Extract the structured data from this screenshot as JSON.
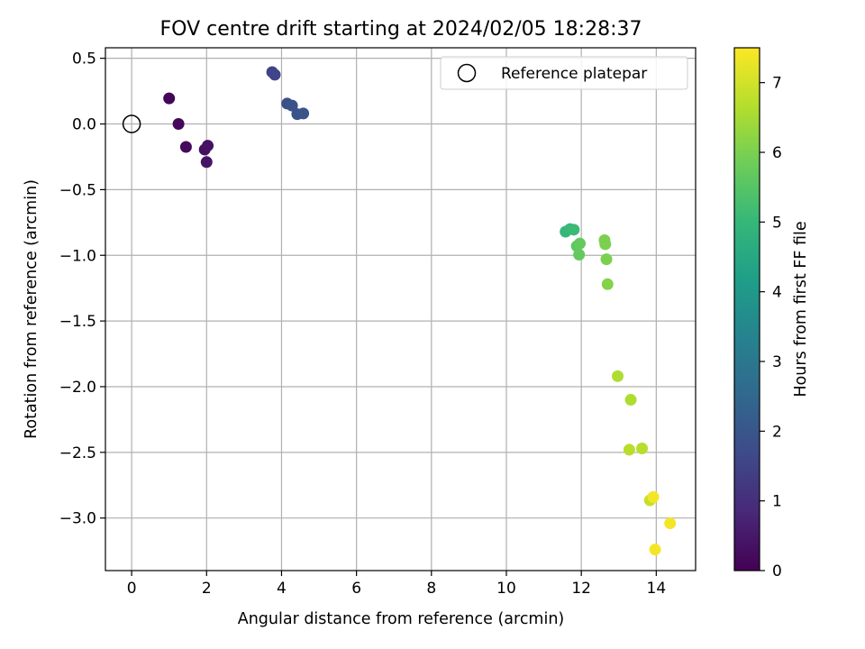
{
  "chart_data": {
    "type": "scatter",
    "title": "FOV centre drift starting at 2024/02/05 18:28:37",
    "xlabel": "Angular distance from reference (arcmin)",
    "ylabel": "Rotation from reference (arcmin)",
    "xlim": [
      -0.7,
      15.05
    ],
    "ylim": [
      -3.4,
      0.58
    ],
    "xticks": [
      0,
      2,
      4,
      6,
      8,
      10,
      12,
      14
    ],
    "xtick_labels": [
      "0",
      "2",
      "4",
      "6",
      "8",
      "10",
      "12",
      "14"
    ],
    "yticks": [
      0.5,
      0.0,
      -0.5,
      -1.0,
      -1.5,
      -2.0,
      -2.5,
      -3.0
    ],
    "ytick_labels": [
      "0.5",
      "0.0",
      "−0.5",
      "−1.0",
      "−1.5",
      "−2.0",
      "−2.5",
      "−3.0"
    ],
    "grid": true,
    "legend": {
      "placement": "upper-right",
      "entries": [
        "Reference platepar"
      ]
    },
    "reference_point": {
      "x": 0.0,
      "y": 0.0,
      "label": "Reference platepar"
    },
    "colorbar": {
      "label": "Hours from first FF file",
      "colormap": "viridis",
      "range": [
        0,
        7.5
      ],
      "ticks": [
        0,
        1,
        2,
        3,
        4,
        5,
        6,
        7
      ],
      "tick_labels": [
        "0",
        "1",
        "2",
        "3",
        "4",
        "5",
        "6",
        "7"
      ]
    },
    "points": [
      {
        "x": 1.0,
        "y": 0.195,
        "c": 0.1
      },
      {
        "x": 1.25,
        "y": 0.0,
        "c": 0.15
      },
      {
        "x": 1.45,
        "y": -0.175,
        "c": 0.2
      },
      {
        "x": 1.95,
        "y": -0.195,
        "c": 0.3
      },
      {
        "x": 2.03,
        "y": -0.165,
        "c": 0.35
      },
      {
        "x": 2.0,
        "y": -0.29,
        "c": 0.4
      },
      {
        "x": 3.75,
        "y": 0.395,
        "c": 1.5
      },
      {
        "x": 3.82,
        "y": 0.375,
        "c": 1.55
      },
      {
        "x": 4.15,
        "y": 0.155,
        "c": 1.8
      },
      {
        "x": 4.28,
        "y": 0.14,
        "c": 1.85
      },
      {
        "x": 4.42,
        "y": 0.075,
        "c": 1.9
      },
      {
        "x": 4.58,
        "y": 0.08,
        "c": 1.95
      },
      {
        "x": 11.58,
        "y": -0.82,
        "c": 5.0
      },
      {
        "x": 11.7,
        "y": -0.8,
        "c": 5.05
      },
      {
        "x": 11.8,
        "y": -0.805,
        "c": 5.1
      },
      {
        "x": 11.88,
        "y": -0.93,
        "c": 5.6
      },
      {
        "x": 11.96,
        "y": -0.91,
        "c": 5.7
      },
      {
        "x": 11.94,
        "y": -0.995,
        "c": 5.7
      },
      {
        "x": 12.62,
        "y": -0.885,
        "c": 6.0
      },
      {
        "x": 12.64,
        "y": -0.915,
        "c": 6.0
      },
      {
        "x": 12.67,
        "y": -1.03,
        "c": 6.0
      },
      {
        "x": 12.7,
        "y": -1.22,
        "c": 6.1
      },
      {
        "x": 12.97,
        "y": -1.92,
        "c": 6.6
      },
      {
        "x": 13.32,
        "y": -2.1,
        "c": 6.6
      },
      {
        "x": 13.28,
        "y": -2.48,
        "c": 6.7
      },
      {
        "x": 13.62,
        "y": -2.47,
        "c": 6.7
      },
      {
        "x": 13.83,
        "y": -2.865,
        "c": 6.85
      },
      {
        "x": 13.92,
        "y": -2.84,
        "c": 7.4
      },
      {
        "x": 13.97,
        "y": -3.24,
        "c": 7.4
      },
      {
        "x": 14.37,
        "y": -3.04,
        "c": 7.4
      }
    ]
  }
}
